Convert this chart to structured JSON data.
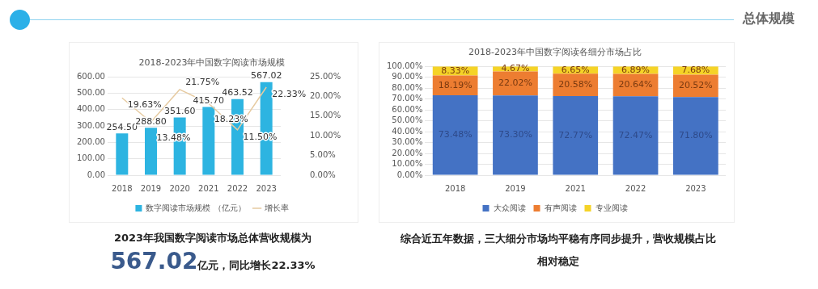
{
  "chart_data": [
    {
      "type": "other",
      "title": "总体规模"
    },
    {
      "type": "bar",
      "title": "2018-2023年中国数字阅读市场规模",
      "categories": [
        "2018",
        "2019",
        "2020",
        "2021",
        "2022",
        "2023"
      ],
      "series": [
        {
          "name": "数字阅读市场规模 （亿元）",
          "color": "#2db4e1",
          "values": [
            254.5,
            288.8,
            351.6,
            415.7,
            463.52,
            567.02
          ],
          "value_labels": [
            "254.50",
            "288.80",
            "351.60",
            "415.70",
            "463.52",
            "567.02"
          ]
        },
        {
          "type": "line",
          "name": "增长率",
          "color": "#e6caa0",
          "axis": "y2",
          "values": [
            19.63,
            13.48,
            21.75,
            18.23,
            11.5,
            22.33
          ],
          "value_labels": [
            "19.63%",
            "13.48%",
            "21.75%",
            "18.23%",
            "11.50%",
            "22.33%"
          ]
        }
      ],
      "ylim": [
        0,
        600
      ],
      "yticks": [
        {
          "value": 0,
          "label": "0.00"
        },
        {
          "value": 100,
          "label": "100.00"
        },
        {
          "value": 200,
          "label": "200.00"
        },
        {
          "value": 300,
          "label": "300.00"
        },
        {
          "value": 400,
          "label": "400.00"
        },
        {
          "value": 500,
          "label": "500.00"
        },
        {
          "value": 600,
          "label": "600.00"
        }
      ],
      "y2lim": [
        0,
        25
      ],
      "y2ticks": [
        {
          "value": 0,
          "label": "0.00%"
        },
        {
          "value": 5,
          "label": "5.00%"
        },
        {
          "value": 10,
          "label": "10.00%"
        },
        {
          "value": 15,
          "label": "15.00%"
        },
        {
          "value": 20,
          "label": "20.00%"
        },
        {
          "value": 25,
          "label": "25.00%"
        }
      ],
      "grid": "y",
      "legend": "bottom",
      "marker": "none",
      "line_style": "solid",
      "annotations": [
        "2023年我国数字阅读市场总体营收规模为",
        "567.02亿元，同比增长22.33%"
      ]
    },
    {
      "type": "bar",
      "title": "2018-2023年中国数字阅读各细分市场占比",
      "categories": [
        "2018",
        "2019",
        "2021",
        "2022",
        "2023"
      ],
      "stacked": true,
      "series": [
        {
          "name": "大众阅读",
          "color": "#4472c4",
          "values": [
            73.48,
            73.3,
            72.77,
            72.47,
            71.8
          ],
          "value_labels": [
            "73.48%",
            "73.30%",
            "72.77%",
            "72.47%",
            "71.80%"
          ]
        },
        {
          "name": "有声阅读",
          "color": "#ed7d31",
          "values": [
            18.19,
            22.02,
            20.58,
            20.64,
            20.52
          ],
          "value_labels": [
            "18.19%",
            "22.02%",
            "20.58%",
            "20.64%",
            "20.52%"
          ]
        },
        {
          "name": "专业阅读",
          "color": "#f5d327",
          "values": [
            8.33,
            4.67,
            6.65,
            6.89,
            7.68
          ],
          "value_labels": [
            "8.33%",
            "4.67%",
            "6.65%",
            "6.89%",
            "7.68%"
          ]
        }
      ],
      "ylim": [
        0,
        100
      ],
      "yticks": [
        {
          "value": 0,
          "label": "0.00%"
        },
        {
          "value": 10,
          "label": "10.00%"
        },
        {
          "value": 20,
          "label": "20.00%"
        },
        {
          "value": 30,
          "label": "30.00%"
        },
        {
          "value": 40,
          "label": "40.00%"
        },
        {
          "value": 50,
          "label": "50.00%"
        },
        {
          "value": 60,
          "label": "60.00%"
        },
        {
          "value": 70,
          "label": "70.00%"
        },
        {
          "value": 80,
          "label": "80.00%"
        },
        {
          "value": 90,
          "label": "90.00%"
        },
        {
          "value": 100,
          "label": "100.00%"
        }
      ],
      "grid": "y",
      "legend": "bottom",
      "annotations": [
        "综合近五年数据，三大细分市场均平稳有序同步提升，营收规模占比相对稳定"
      ]
    }
  ]
}
